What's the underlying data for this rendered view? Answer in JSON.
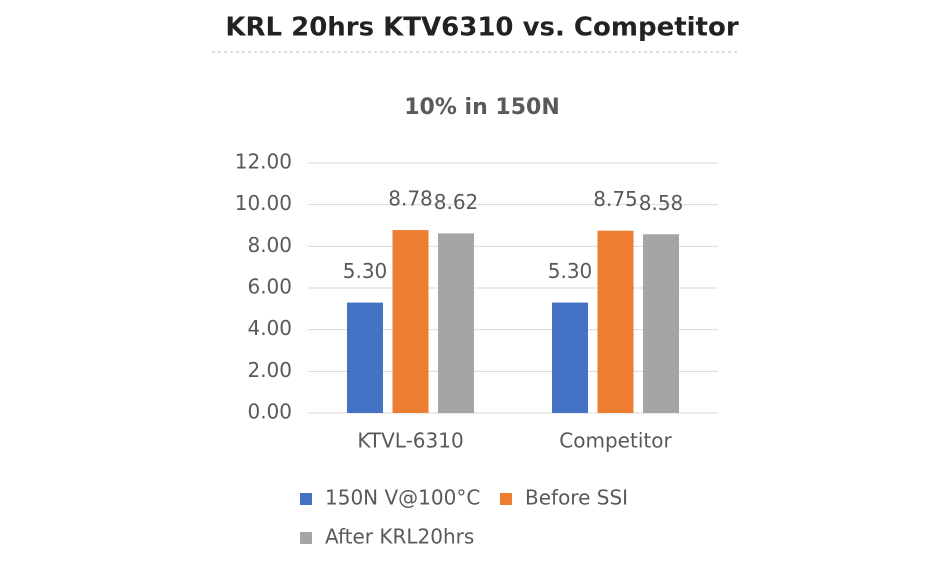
{
  "page_title": "KRL 20hrs KTV6310 vs. Competitor",
  "chart_data": {
    "type": "bar",
    "title": "10% in 150N",
    "categories": [
      "KTVL-6310",
      "Competitor"
    ],
    "series": [
      {
        "name": "150N V@100°C",
        "color": "#4472c4",
        "values": [
          5.3,
          5.3
        ],
        "value_labels": [
          "5.30",
          "5.30"
        ]
      },
      {
        "name": "Before SSI",
        "color": "#ed7d31",
        "values": [
          8.78,
          8.75
        ],
        "value_labels": [
          "8.78",
          "8.75"
        ]
      },
      {
        "name": "After KRL20hrs",
        "color": "#a5a5a5",
        "values": [
          8.62,
          8.58
        ],
        "value_labels": [
          "8.62",
          "8.58"
        ]
      }
    ],
    "ylim": [
      0,
      12
    ],
    "yticks": [
      {
        "value": 0,
        "label": "0.00"
      },
      {
        "value": 2,
        "label": "2.00"
      },
      {
        "value": 4,
        "label": "4.00"
      },
      {
        "value": 6,
        "label": "6.00"
      },
      {
        "value": 8,
        "label": "8.00"
      },
      {
        "value": 10,
        "label": "10.00"
      },
      {
        "value": 12,
        "label": "12.00"
      }
    ],
    "grid": true,
    "legend": "bottom"
  }
}
